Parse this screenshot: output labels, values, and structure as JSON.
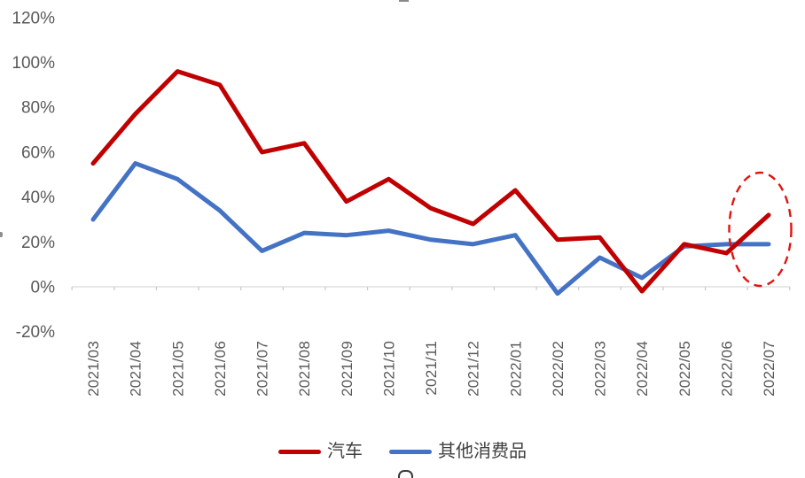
{
  "chart_data": {
    "type": "line",
    "categories": [
      "2021/03",
      "2021/04",
      "2021/05",
      "2021/06",
      "2021/07",
      "2021/08",
      "2021/09",
      "2021/10",
      "2021/11",
      "2021/12",
      "2022/01",
      "2022/02",
      "2022/03",
      "2022/04",
      "2022/05",
      "2022/06",
      "2022/07"
    ],
    "series": [
      {
        "name": "汽车",
        "color": "#C00000",
        "values": [
          55,
          77,
          96,
          90,
          60,
          64,
          38,
          48,
          35,
          28,
          43,
          21,
          22,
          -2,
          19,
          15,
          32
        ]
      },
      {
        "name": "其他消费品",
        "color": "#4472C4",
        "values": [
          30,
          55,
          48,
          34,
          16,
          24,
          23,
          25,
          21,
          19,
          23,
          -3,
          13,
          4,
          18,
          19,
          19
        ]
      }
    ],
    "ylim": [
      -20,
      120
    ],
    "yticks": [
      {
        "value": 120,
        "label": "120%"
      },
      {
        "value": 100,
        "label": "100%"
      },
      {
        "value": 80,
        "label": "80%"
      },
      {
        "value": 60,
        "label": "60%"
      },
      {
        "value": 40,
        "label": "40%"
      },
      {
        "value": 20,
        "label": "20%"
      },
      {
        "value": 0,
        "label": "0%"
      },
      {
        "value": -20,
        "label": "-20%"
      }
    ],
    "grid": false,
    "legend_position": "bottom",
    "axis_text_color": "#595959",
    "axis_line_color": "#D9D9D9",
    "tick_color": "#C9C9C9",
    "annotation": {
      "shape": "dashed-ellipse",
      "color": "#E0140F",
      "around_category": "2022/07"
    }
  }
}
